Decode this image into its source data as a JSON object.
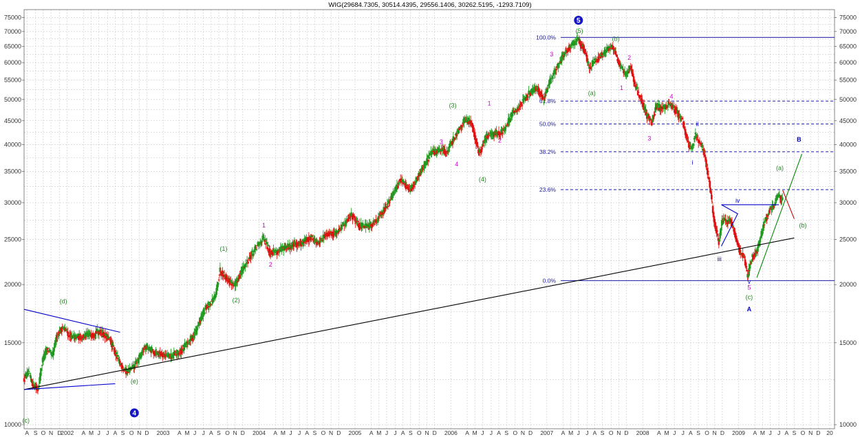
{
  "chart_data": {
    "type": "candlestick",
    "title": "WIG(29684.7305, 30514.4395, 29556.1406, 30262.5195, -1293.7109)",
    "scale": "log",
    "ylim": [
      9800,
      78000
    ],
    "xlim": [
      2001.55,
      2010.0
    ],
    "grid": true,
    "y_ticks": [
      10000,
      15000,
      20000,
      25000,
      30000,
      35000,
      40000,
      45000,
      50000,
      55000,
      60000,
      65000,
      70000,
      75000
    ],
    "y_tick_labels": [
      "10000",
      "15000",
      "20000",
      "25000",
      "30000",
      "35000",
      "40000",
      "45000",
      "50000",
      "55000",
      "60000",
      "65000",
      "70000",
      "75000"
    ],
    "x_month_labels": [
      {
        "t": 2001.58,
        "label": "A"
      },
      {
        "t": 2001.67,
        "label": "S"
      },
      {
        "t": 2001.75,
        "label": "O"
      },
      {
        "t": 2001.83,
        "label": "N"
      },
      {
        "t": 2001.92,
        "label": "D"
      },
      {
        "t": 2002.0,
        "label": "2002"
      },
      {
        "t": 2002.17,
        "label": "A"
      },
      {
        "t": 2002.25,
        "label": "M"
      },
      {
        "t": 2002.33,
        "label": "J"
      },
      {
        "t": 2002.42,
        "label": "J"
      },
      {
        "t": 2002.5,
        "label": "A"
      },
      {
        "t": 2002.58,
        "label": "S"
      },
      {
        "t": 2002.67,
        "label": "O"
      },
      {
        "t": 2002.75,
        "label": "N"
      },
      {
        "t": 2002.83,
        "label": "D"
      },
      {
        "t": 2003.0,
        "label": "2003"
      },
      {
        "t": 2003.17,
        "label": "A"
      },
      {
        "t": 2003.25,
        "label": "M"
      },
      {
        "t": 2003.33,
        "label": "J"
      },
      {
        "t": 2003.42,
        "label": "J"
      },
      {
        "t": 2003.5,
        "label": "A"
      },
      {
        "t": 2003.58,
        "label": "S"
      },
      {
        "t": 2003.67,
        "label": "O"
      },
      {
        "t": 2003.75,
        "label": "N"
      },
      {
        "t": 2003.83,
        "label": "D"
      },
      {
        "t": 2004.0,
        "label": "2004"
      },
      {
        "t": 2004.17,
        "label": "A"
      },
      {
        "t": 2004.25,
        "label": "M"
      },
      {
        "t": 2004.33,
        "label": "J"
      },
      {
        "t": 2004.42,
        "label": "J"
      },
      {
        "t": 2004.5,
        "label": "A"
      },
      {
        "t": 2004.58,
        "label": "S"
      },
      {
        "t": 2004.67,
        "label": "O"
      },
      {
        "t": 2004.75,
        "label": "N"
      },
      {
        "t": 2004.83,
        "label": "D"
      },
      {
        "t": 2005.0,
        "label": "2005"
      },
      {
        "t": 2005.17,
        "label": "A"
      },
      {
        "t": 2005.25,
        "label": "M"
      },
      {
        "t": 2005.33,
        "label": "J"
      },
      {
        "t": 2005.42,
        "label": "J"
      },
      {
        "t": 2005.5,
        "label": "A"
      },
      {
        "t": 2005.58,
        "label": "S"
      },
      {
        "t": 2005.67,
        "label": "O"
      },
      {
        "t": 2005.75,
        "label": "N"
      },
      {
        "t": 2005.83,
        "label": "D"
      },
      {
        "t": 2006.0,
        "label": "2006"
      },
      {
        "t": 2006.17,
        "label": "A"
      },
      {
        "t": 2006.25,
        "label": "M"
      },
      {
        "t": 2006.33,
        "label": "J"
      },
      {
        "t": 2006.42,
        "label": "J"
      },
      {
        "t": 2006.5,
        "label": "A"
      },
      {
        "t": 2006.58,
        "label": "S"
      },
      {
        "t": 2006.67,
        "label": "O"
      },
      {
        "t": 2006.75,
        "label": "N"
      },
      {
        "t": 2006.83,
        "label": "D"
      },
      {
        "t": 2007.0,
        "label": "2007"
      },
      {
        "t": 2007.17,
        "label": "A"
      },
      {
        "t": 2007.25,
        "label": "M"
      },
      {
        "t": 2007.33,
        "label": "J"
      },
      {
        "t": 2007.42,
        "label": "J"
      },
      {
        "t": 2007.5,
        "label": "A"
      },
      {
        "t": 2007.58,
        "label": "S"
      },
      {
        "t": 2007.67,
        "label": "O"
      },
      {
        "t": 2007.75,
        "label": "N"
      },
      {
        "t": 2007.83,
        "label": "D"
      },
      {
        "t": 2008.0,
        "label": "2008"
      },
      {
        "t": 2008.17,
        "label": "A"
      },
      {
        "t": 2008.25,
        "label": "M"
      },
      {
        "t": 2008.33,
        "label": "J"
      },
      {
        "t": 2008.42,
        "label": "J"
      },
      {
        "t": 2008.5,
        "label": "A"
      },
      {
        "t": 2008.58,
        "label": "S"
      },
      {
        "t": 2008.67,
        "label": "O"
      },
      {
        "t": 2008.75,
        "label": "N"
      },
      {
        "t": 2008.83,
        "label": "D"
      },
      {
        "t": 2009.0,
        "label": "2009"
      },
      {
        "t": 2009.17,
        "label": "A"
      },
      {
        "t": 2009.25,
        "label": "M"
      },
      {
        "t": 2009.33,
        "label": "J"
      },
      {
        "t": 2009.42,
        "label": "J"
      },
      {
        "t": 2009.5,
        "label": "A"
      },
      {
        "t": 2009.58,
        "label": "S"
      },
      {
        "t": 2009.67,
        "label": "O"
      },
      {
        "t": 2009.75,
        "label": "N"
      },
      {
        "t": 2009.83,
        "label": "D"
      },
      {
        "t": 2009.95,
        "label": "20"
      }
    ],
    "price_path": [
      [
        2001.55,
        12500
      ],
      [
        2001.6,
        12900
      ],
      [
        2001.65,
        12200
      ],
      [
        2001.7,
        11900
      ],
      [
        2001.75,
        13800
      ],
      [
        2001.8,
        14600
      ],
      [
        2001.85,
        14000
      ],
      [
        2001.9,
        15600
      ],
      [
        2001.96,
        16200
      ],
      [
        2002.05,
        15400
      ],
      [
        2002.2,
        15500
      ],
      [
        2002.35,
        15900
      ],
      [
        2002.45,
        15200
      ],
      [
        2002.55,
        13600
      ],
      [
        2002.62,
        13000
      ],
      [
        2002.7,
        13300
      ],
      [
        2002.82,
        14700
      ],
      [
        2002.92,
        14300
      ],
      [
        2003.0,
        14200
      ],
      [
        2003.08,
        14000
      ],
      [
        2003.18,
        14300
      ],
      [
        2003.32,
        15500
      ],
      [
        2003.45,
        17800
      ],
      [
        2003.55,
        18800
      ],
      [
        2003.6,
        21500
      ],
      [
        2003.68,
        20500
      ],
      [
        2003.75,
        19900
      ],
      [
        2003.85,
        21900
      ],
      [
        2003.95,
        23600
      ],
      [
        2004.05,
        25200
      ],
      [
        2004.12,
        23500
      ],
      [
        2004.2,
        23600
      ],
      [
        2004.3,
        24100
      ],
      [
        2004.45,
        24600
      ],
      [
        2004.55,
        25300
      ],
      [
        2004.62,
        24500
      ],
      [
        2004.7,
        25700
      ],
      [
        2004.8,
        25800
      ],
      [
        2004.9,
        27000
      ],
      [
        2004.97,
        28300
      ],
      [
        2005.05,
        26800
      ],
      [
        2005.15,
        26600
      ],
      [
        2005.25,
        27800
      ],
      [
        2005.38,
        30500
      ],
      [
        2005.48,
        33800
      ],
      [
        2005.58,
        31700
      ],
      [
        2005.68,
        34700
      ],
      [
        2005.8,
        38300
      ],
      [
        2005.9,
        39000
      ],
      [
        2005.97,
        38600
      ],
      [
        2006.05,
        41800
      ],
      [
        2006.15,
        45200
      ],
      [
        2006.22,
        44700
      ],
      [
        2006.3,
        38200
      ],
      [
        2006.38,
        41700
      ],
      [
        2006.45,
        42200
      ],
      [
        2006.55,
        42800
      ],
      [
        2006.65,
        46600
      ],
      [
        2006.75,
        49200
      ],
      [
        2006.82,
        51400
      ],
      [
        2006.9,
        52900
      ],
      [
        2006.97,
        50200
      ],
      [
        2007.05,
        55400
      ],
      [
        2007.12,
        58900
      ],
      [
        2007.2,
        63200
      ],
      [
        2007.28,
        65500
      ],
      [
        2007.33,
        67600
      ],
      [
        2007.4,
        63500
      ],
      [
        2007.45,
        58300
      ],
      [
        2007.5,
        60600
      ],
      [
        2007.58,
        62400
      ],
      [
        2007.65,
        64200
      ],
      [
        2007.7,
        65000
      ],
      [
        2007.77,
        58900
      ],
      [
        2007.83,
        56300
      ],
      [
        2007.88,
        59000
      ],
      [
        2007.93,
        53300
      ],
      [
        2008.0,
        49400
      ],
      [
        2008.05,
        46200
      ],
      [
        2008.1,
        44700
      ],
      [
        2008.15,
        48400
      ],
      [
        2008.22,
        47800
      ],
      [
        2008.28,
        48900
      ],
      [
        2008.35,
        47300
      ],
      [
        2008.42,
        45200
      ],
      [
        2008.48,
        40100
      ],
      [
        2008.52,
        39100
      ],
      [
        2008.55,
        41900
      ],
      [
        2008.6,
        40600
      ],
      [
        2008.65,
        38300
      ],
      [
        2008.7,
        33200
      ],
      [
        2008.75,
        27500
      ],
      [
        2008.8,
        24700
      ],
      [
        2008.84,
        27800
      ],
      [
        2008.88,
        27200
      ],
      [
        2008.92,
        27500
      ],
      [
        2008.96,
        26100
      ],
      [
        2009.02,
        23500
      ],
      [
        2009.06,
        23000
      ],
      [
        2009.1,
        20800
      ],
      [
        2009.14,
        22700
      ],
      [
        2009.2,
        23700
      ],
      [
        2009.27,
        26900
      ],
      [
        2009.33,
        28900
      ],
      [
        2009.38,
        29700
      ],
      [
        2009.42,
        31200
      ],
      [
        2009.46,
        30300
      ]
    ],
    "horizontal_lines": [
      {
        "label": "100.0%",
        "value": 68000,
        "style": "solid"
      },
      {
        "label": "61.8%",
        "value": 49600,
        "style": "dashed"
      },
      {
        "label": "50.0%",
        "value": 44300,
        "style": "dashed"
      },
      {
        "label": "38.2%",
        "value": 38600,
        "style": "dashed"
      },
      {
        "label": "23.6%",
        "value": 32000,
        "style": "dashed"
      },
      {
        "label": "0.0%",
        "value": 20400,
        "style": "solid"
      }
    ],
    "trendlines": [
      {
        "color": "#000000",
        "points": [
          [
            2001.55,
            11900
          ],
          [
            2009.58,
            25200
          ]
        ]
      },
      {
        "color": "#0000cc",
        "points": [
          [
            2001.55,
            17700
          ],
          [
            2002.55,
            15800
          ]
        ]
      },
      {
        "color": "#0000cc",
        "points": [
          [
            2001.55,
            11900
          ],
          [
            2002.5,
            12250
          ]
        ]
      },
      {
        "color": "#0000cc",
        "points": [
          [
            2008.82,
            29700
          ],
          [
            2008.99,
            28400
          ],
          [
            2008.82,
            24200
          ]
        ]
      },
      {
        "color": "#0000cc",
        "points": [
          [
            2008.82,
            29700
          ],
          [
            2009.42,
            29700
          ]
        ]
      },
      {
        "color": "#008800",
        "points": [
          [
            2009.19,
            20700
          ],
          [
            2009.66,
            38200
          ]
        ]
      },
      {
        "color": "#cc0000",
        "points": [
          [
            2009.46,
            31900
          ],
          [
            2009.58,
            27700
          ]
        ]
      }
    ],
    "wave_labels": [
      {
        "text": "5",
        "t": 2007.33,
        "v": 74000,
        "color": "#0000cc",
        "circle": true
      },
      {
        "text": "4",
        "t": 2002.7,
        "v": 10600,
        "color": "#0000cc",
        "circle": true
      },
      {
        "text": "B",
        "t": 2009.63,
        "v": 41000,
        "color": "#0000cc"
      },
      {
        "text": "A",
        "t": 2009.11,
        "v": 17700,
        "color": "#0000cc"
      },
      {
        "text": "(d)",
        "t": 2001.96,
        "v": 18400,
        "color": "#228822"
      },
      {
        "text": "(e)",
        "t": 2002.7,
        "v": 12400,
        "color": "#228822"
      },
      {
        "text": "(c)",
        "t": 2001.57,
        "v": 10200,
        "color": "#228822"
      },
      {
        "text": "(1)",
        "t": 2003.63,
        "v": 23900,
        "color": "#228822"
      },
      {
        "text": "(2)",
        "t": 2003.76,
        "v": 18500,
        "color": "#228822"
      },
      {
        "text": "(3)",
        "t": 2006.02,
        "v": 48500,
        "color": "#228822"
      },
      {
        "text": "(4)",
        "t": 2006.33,
        "v": 33700,
        "color": "#228822"
      },
      {
        "text": "(5)",
        "t": 2007.34,
        "v": 70200,
        "color": "#228822"
      },
      {
        "text": "(a)",
        "t": 2007.47,
        "v": 51600,
        "color": "#228822"
      },
      {
        "text": "(b)",
        "t": 2007.72,
        "v": 67500,
        "color": "#228822"
      },
      {
        "text": "(c)",
        "t": 2009.11,
        "v": 18800,
        "color": "#228822"
      },
      {
        "text": "(a)",
        "t": 2009.43,
        "v": 35600,
        "color": "#228822"
      },
      {
        "text": "(b)",
        "t": 2009.67,
        "v": 26800,
        "color": "#228822"
      },
      {
        "text": "1",
        "t": 2004.05,
        "v": 26800,
        "color": "#cc00cc"
      },
      {
        "text": "2",
        "t": 2004.12,
        "v": 22100,
        "color": "#cc00cc"
      },
      {
        "text": "3",
        "t": 2005.9,
        "v": 40500,
        "color": "#cc00cc"
      },
      {
        "text": "4",
        "t": 2006.06,
        "v": 36300,
        "color": "#cc00cc"
      },
      {
        "text": "1",
        "t": 2006.4,
        "v": 49000,
        "color": "#cc00cc"
      },
      {
        "text": "2",
        "t": 2006.51,
        "v": 40800,
        "color": "#cc00cc"
      },
      {
        "text": "3",
        "t": 2007.05,
        "v": 62500,
        "color": "#cc00cc"
      },
      {
        "text": "1",
        "t": 2007.78,
        "v": 52900,
        "color": "#cc00cc"
      },
      {
        "text": "2",
        "t": 2007.86,
        "v": 61500,
        "color": "#cc00cc"
      },
      {
        "text": "3",
        "t": 2008.07,
        "v": 41200,
        "color": "#cc00cc"
      },
      {
        "text": "4",
        "t": 2008.3,
        "v": 50700,
        "color": "#cc00cc"
      },
      {
        "text": "5",
        "t": 2009.11,
        "v": 19700,
        "color": "#cc00cc"
      },
      {
        "text": "ii",
        "t": 2008.57,
        "v": 44300,
        "color": "#0000cc"
      },
      {
        "text": "i",
        "t": 2008.52,
        "v": 36600,
        "color": "#0000cc"
      },
      {
        "text": "iii",
        "t": 2008.8,
        "v": 22700,
        "color": "#0000cc"
      },
      {
        "text": "iv",
        "t": 2008.99,
        "v": 30300,
        "color": "#0000cc"
      },
      {
        "text": "v",
        "t": 2009.11,
        "v": 20300,
        "color": "#0000cc"
      }
    ]
  }
}
